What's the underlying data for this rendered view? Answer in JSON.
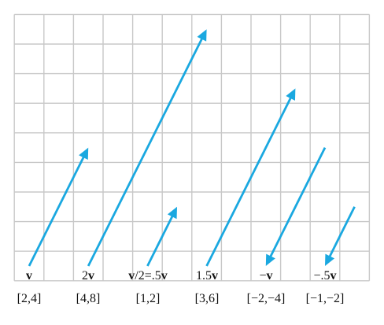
{
  "diagram": {
    "grid": {
      "columns": 12,
      "rows": 9,
      "unit": 1
    },
    "arrow_color": "#1aa8e0",
    "grid_color": "#c8c8c8",
    "vectors": [
      {
        "id": "v",
        "label_bold": "v",
        "label_prefix": "",
        "label_suffix": "",
        "components": "[2,4]",
        "tail": [
          0,
          0
        ],
        "vector": [
          2,
          4
        ]
      },
      {
        "id": "2v",
        "label_bold": "v",
        "label_prefix": "2",
        "label_suffix": "",
        "components": "[4,8]",
        "tail": [
          2,
          0
        ],
        "vector": [
          4,
          8
        ]
      },
      {
        "id": "v-half",
        "label_bold": "v",
        "label_prefix": "",
        "label_suffix": "/2=.5",
        "label_bold2": "v",
        "components": "[1,2]",
        "tail": [
          4,
          0
        ],
        "vector": [
          1,
          2
        ]
      },
      {
        "id": "1.5v",
        "label_bold": "v",
        "label_prefix": "1.5",
        "label_suffix": "",
        "components": "[3,6]",
        "tail": [
          6,
          0
        ],
        "vector": [
          3,
          6
        ]
      },
      {
        "id": "neg-v",
        "label_bold": "v",
        "label_prefix": "−",
        "label_suffix": "",
        "components": "[−2,−4]",
        "tail": [
          10,
          4
        ],
        "vector": [
          -2,
          -4
        ]
      },
      {
        "id": "neg-half-v",
        "label_bold": "v",
        "label_prefix": "−.5",
        "label_suffix": "",
        "components": "[−1,−2]",
        "tail": [
          11,
          2
        ],
        "vector": [
          -1,
          -2
        ]
      }
    ]
  }
}
